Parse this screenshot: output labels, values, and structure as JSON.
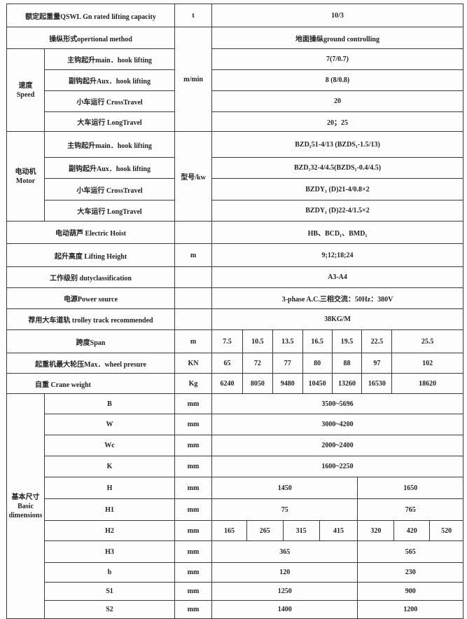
{
  "rows": {
    "capacity": {
      "label": "额定起重量QSWL Gn rated lifting capacity",
      "unit": "t",
      "value": "10/3"
    },
    "operation": {
      "label": "操纵形式opertional method",
      "value": "地面操纵ground controlling"
    },
    "speed": {
      "group_cn": "速度",
      "group_en": "Speed",
      "unit": "m/min",
      "items": [
        {
          "label": "主钩起升main．hook lifting",
          "value": "7(7/0.7)"
        },
        {
          "label": "副钩起升Aux．hook lifting",
          "value": "8 (8/0.8)"
        },
        {
          "label": "小车运行 CrossTravel",
          "value": "20"
        },
        {
          "label": "大车运行 LongTravel",
          "value": "20；25"
        }
      ]
    },
    "motor": {
      "group_cn": "电动机",
      "group_en": "Motor",
      "unit": "型号/kw",
      "items": [
        {
          "label": "主钩起升main．hook lifting",
          "value": "BZD₁51-4/13 (BZDS₁-1.5/13)"
        },
        {
          "label": "副钩起升Aux．hook lifting",
          "value": "BZD₁32-4/4.5(BZDS₁-0.4/4.5)"
        },
        {
          "label": "小车运行 CrossTravel",
          "value": "BZDY₁ (D)21-4/0.8×2"
        },
        {
          "label": "大车运行 LongTravel",
          "value": "BZDY₁ (D)22-4/1.5×2"
        }
      ]
    },
    "hoist": {
      "label": "电动葫芦 Electric Hoist",
      "unit": "",
      "value": "HB、BCD₁、BMD₁"
    },
    "lifting_height": {
      "label": "起升高度 Lifting Height",
      "unit": "m",
      "value": "9;12;18;24"
    },
    "duty": {
      "label": "工作级别 dutyclassification",
      "unit": "",
      "value": "A3-A4"
    },
    "power": {
      "label": "电源Power source",
      "unit": "",
      "value": "3-phase A.C.三相交流：50Hz：380V"
    },
    "track": {
      "label": "荐用大车道轨 trolley track recommended",
      "unit": "",
      "value": "38KG/M"
    },
    "span": {
      "label": "跨度Span",
      "unit": "m",
      "values": [
        "7.5",
        "10.5",
        "13.5",
        "16.5",
        "19.5",
        "22.5",
        "25.5"
      ]
    },
    "wheel": {
      "label": "起重机最大轮压Max．wheel presure",
      "unit": "KN",
      "values": [
        "65",
        "72",
        "77",
        "80",
        "88",
        "97",
        "102"
      ]
    },
    "weight": {
      "label": "自重 Crane  weight",
      "unit": "Kg",
      "values": [
        "6240",
        "8050",
        "9480",
        "10450",
        "13260",
        "16530",
        "18620"
      ]
    },
    "basic": {
      "group_cn": "基本尺寸",
      "group_en1": "Basic",
      "group_en2": "dimensions",
      "B": {
        "label": "B",
        "unit": "mm",
        "value": "3500~5696"
      },
      "W": {
        "label": "W",
        "unit": "mm",
        "value": "3000~4200"
      },
      "Wc": {
        "label": "Wc",
        "unit": "mm",
        "value": "2000~2400"
      },
      "K": {
        "label": "K",
        "unit": "mm",
        "value": "1600~2250"
      },
      "H": {
        "label": "H",
        "unit": "mm",
        "values": [
          "1450",
          "1650"
        ]
      },
      "H1": {
        "label": "H1",
        "unit": "mm",
        "values": [
          "75",
          "765"
        ]
      },
      "H2": {
        "label": "H2",
        "unit": "mm",
        "values": [
          "165",
          "265",
          "315",
          "415",
          "320",
          "420",
          "520"
        ]
      },
      "H3": {
        "label": "H3",
        "unit": "mm",
        "values": [
          "365",
          "565"
        ]
      },
      "b": {
        "label": "b",
        "unit": "mm",
        "values": [
          "120",
          "230"
        ]
      },
      "S1": {
        "label": "S1",
        "unit": "mm",
        "values": [
          "1250",
          "900"
        ]
      },
      "S2": {
        "label": "S2",
        "unit": "mm",
        "values": [
          "1400",
          "1200"
        ]
      }
    }
  }
}
